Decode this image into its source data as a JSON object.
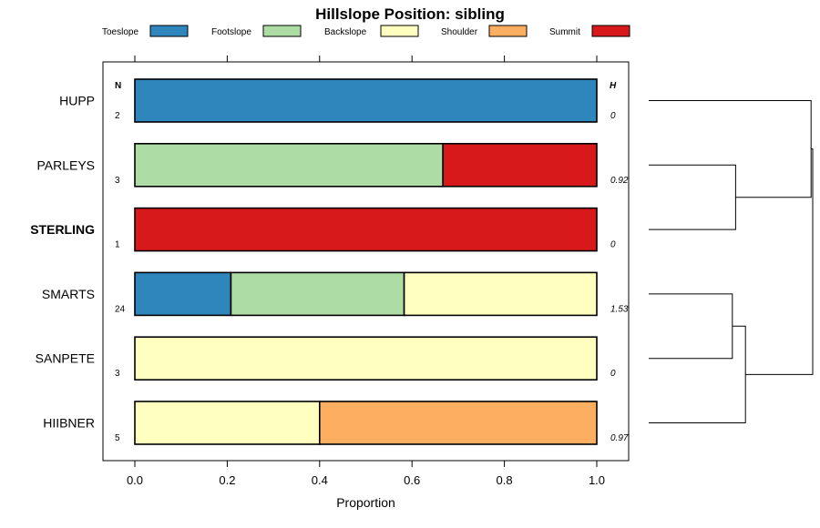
{
  "chart_data": {
    "type": "bar",
    "orientation": "horizontal-stacked",
    "title": "Hillslope Position: sibling",
    "xlabel": "Proportion",
    "ylabel": "",
    "xlim": [
      0,
      1
    ],
    "x_ticks": [
      "0.0",
      "0.2",
      "0.4",
      "0.6",
      "0.8",
      "1.0"
    ],
    "n_header": "N",
    "h_header": "H",
    "legend_position": "top",
    "series": [
      {
        "name": "Toeslope",
        "color": "#2E86BD"
      },
      {
        "name": "Footslope",
        "color": "#ADDDA4"
      },
      {
        "name": "Backslope",
        "color": "#FFFFBF"
      },
      {
        "name": "Shoulder",
        "color": "#FDAE61"
      },
      {
        "name": "Summit",
        "color": "#D7191C"
      }
    ],
    "categories": [
      {
        "name": "HUPP",
        "n": "2",
        "h": "0",
        "bold": false,
        "values": [
          1.0,
          0,
          0,
          0,
          0
        ]
      },
      {
        "name": "PARLEYS",
        "n": "3",
        "h": "0.92",
        "bold": false,
        "values": [
          0,
          0.667,
          0,
          0,
          0.333
        ]
      },
      {
        "name": "STERLING",
        "n": "1",
        "h": "0",
        "bold": true,
        "values": [
          0,
          0,
          0,
          0,
          1.0
        ]
      },
      {
        "name": "SMARTS",
        "n": "24",
        "h": "1.53",
        "bold": false,
        "values": [
          0.208,
          0.375,
          0.417,
          0,
          0
        ]
      },
      {
        "name": "SANPETE",
        "n": "3",
        "h": "0",
        "bold": false,
        "values": [
          0,
          0,
          1.0,
          0,
          0
        ]
      },
      {
        "name": "HIIBNER",
        "n": "5",
        "h": "0.97",
        "bold": false,
        "values": [
          0,
          0,
          0.4,
          0.6,
          0
        ]
      }
    ],
    "dendrogram": {
      "type": "hierarchical-clustering",
      "merges": [
        {
          "members": [
            "PARLEYS",
            "STERLING"
          ],
          "height": 0.53
        },
        {
          "members": [
            "SMARTS",
            "SANPETE"
          ],
          "height": 0.51
        },
        {
          "members": [
            "SMARTS+SANPETE",
            "HIIBNER"
          ],
          "height": 0.59
        },
        {
          "members": [
            "HUPP",
            "PARLEYS+STERLING"
          ],
          "height": 0.99
        },
        {
          "members": [
            "HUPP+PARLEYS+STERLING",
            "SMARTS+SANPETE+HIIBNER"
          ],
          "height": 1.0
        }
      ]
    }
  }
}
